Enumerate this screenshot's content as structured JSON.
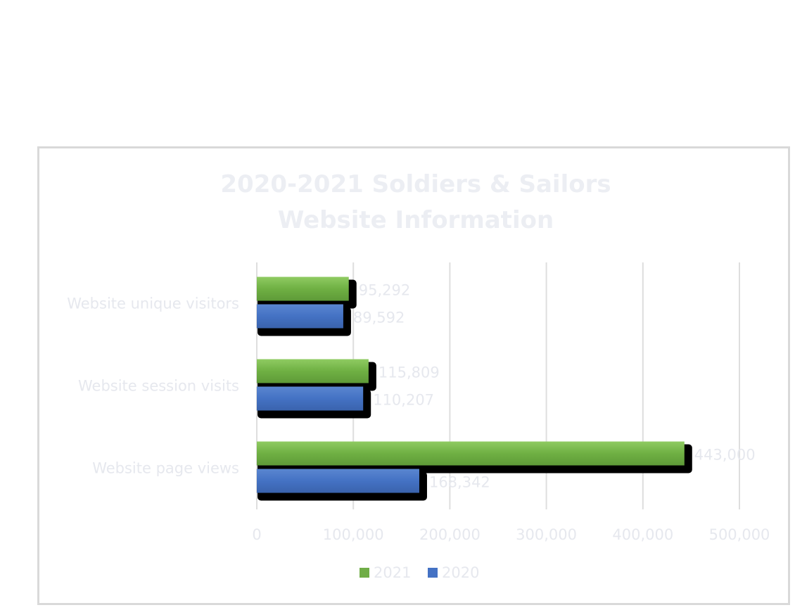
{
  "chart_data": {
    "type": "bar",
    "orientation": "horizontal",
    "title": "2020-2021 Soldiers & Sailors",
    "subtitle": "Website Information",
    "categories": [
      "Website unique visitors",
      "Website session visits",
      "Website page views"
    ],
    "series": [
      {
        "name": "2021",
        "color": "#70ad47",
        "values": [
          95292,
          115809,
          443000
        ],
        "labels": [
          "95,292",
          "115,809",
          "443,000"
        ]
      },
      {
        "name": "2020",
        "color": "#4472c4",
        "values": [
          89592,
          110207,
          168342
        ],
        "labels": [
          "89,592",
          "110,207",
          "168,342"
        ]
      }
    ],
    "xlim": [
      0,
      500000
    ],
    "x_ticks": [
      0,
      100000,
      200000,
      300000,
      400000,
      500000
    ],
    "x_tick_labels": [
      "0",
      "100,000",
      "200,000",
      "300,000",
      "400,000",
      "500,000"
    ],
    "grid": "vertical",
    "legend": "bottom"
  }
}
